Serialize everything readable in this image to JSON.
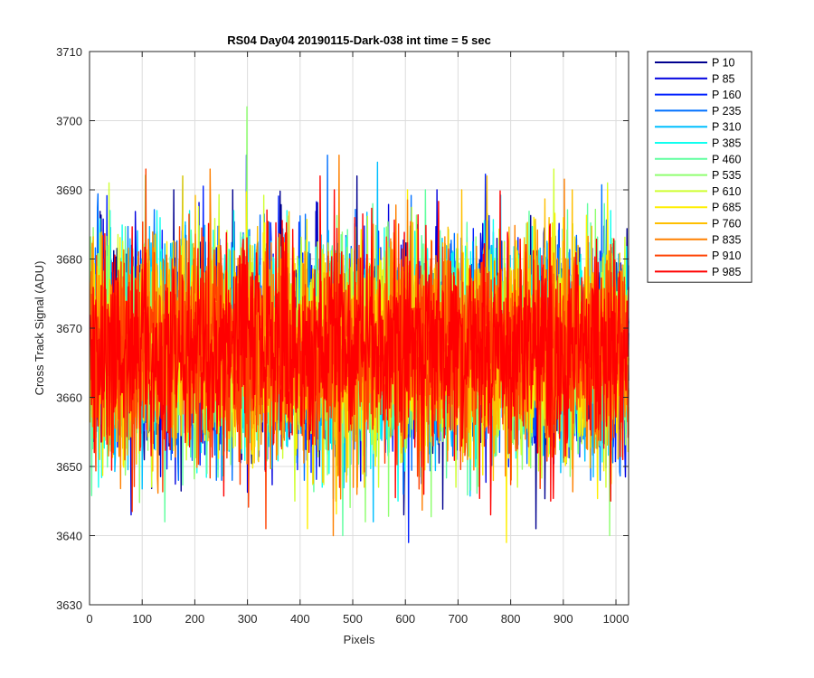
{
  "chart_data": {
    "type": "line",
    "title": "RS04 Day04 20190115-Dark-038 int time = 5 sec",
    "xlabel": "Pixels",
    "ylabel": "Cross Track Signal (ADU)",
    "xlim": [
      0,
      1024
    ],
    "ylim": [
      3630,
      3710
    ],
    "x_ticks": [
      0,
      100,
      200,
      300,
      400,
      500,
      600,
      700,
      800,
      900,
      1000
    ],
    "y_ticks": [
      3630,
      3640,
      3650,
      3660,
      3670,
      3680,
      3690,
      3700,
      3710
    ],
    "grid": true,
    "legend_position": "outside-top-right",
    "noise_model": {
      "mean": 3667,
      "std": 7.5,
      "samples_per_series": 1024
    },
    "series": [
      {
        "name": "P 10",
        "color": "#00008f",
        "mean": 3667,
        "min": 3641,
        "max": 3692
      },
      {
        "name": "P 85",
        "color": "#0000df",
        "mean": 3667,
        "min": 3643,
        "max": 3692
      },
      {
        "name": "P 160",
        "color": "#0020ff",
        "mean": 3667,
        "min": 3639,
        "max": 3695
      },
      {
        "name": "P 235",
        "color": "#0070ff",
        "mean": 3667,
        "min": 3646,
        "max": 3695
      },
      {
        "name": "P 310",
        "color": "#00bfff",
        "mean": 3667,
        "min": 3642,
        "max": 3694
      },
      {
        "name": "P 385",
        "color": "#10ffef",
        "mean": 3667,
        "min": 3645,
        "max": 3689
      },
      {
        "name": "P 460",
        "color": "#60ff9f",
        "mean": 3667,
        "min": 3640,
        "max": 3690
      },
      {
        "name": "P 535",
        "color": "#8fff70",
        "mean": 3667,
        "min": 3640,
        "max": 3702
      },
      {
        "name": "P 610",
        "color": "#cfff30",
        "mean": 3667,
        "min": 3645,
        "max": 3693
      },
      {
        "name": "P 685",
        "color": "#ffef00",
        "mean": 3667,
        "min": 3639,
        "max": 3692
      },
      {
        "name": "P 760",
        "color": "#ffbf00",
        "mean": 3667,
        "min": 3645,
        "max": 3692
      },
      {
        "name": "P 835",
        "color": "#ff8000",
        "mean": 3667,
        "min": 3640,
        "max": 3695
      },
      {
        "name": "P 910",
        "color": "#ff4000",
        "mean": 3667,
        "min": 3641,
        "max": 3693
      },
      {
        "name": "P 985",
        "color": "#ff0000",
        "mean": 3667,
        "min": 3643,
        "max": 3692
      }
    ]
  }
}
